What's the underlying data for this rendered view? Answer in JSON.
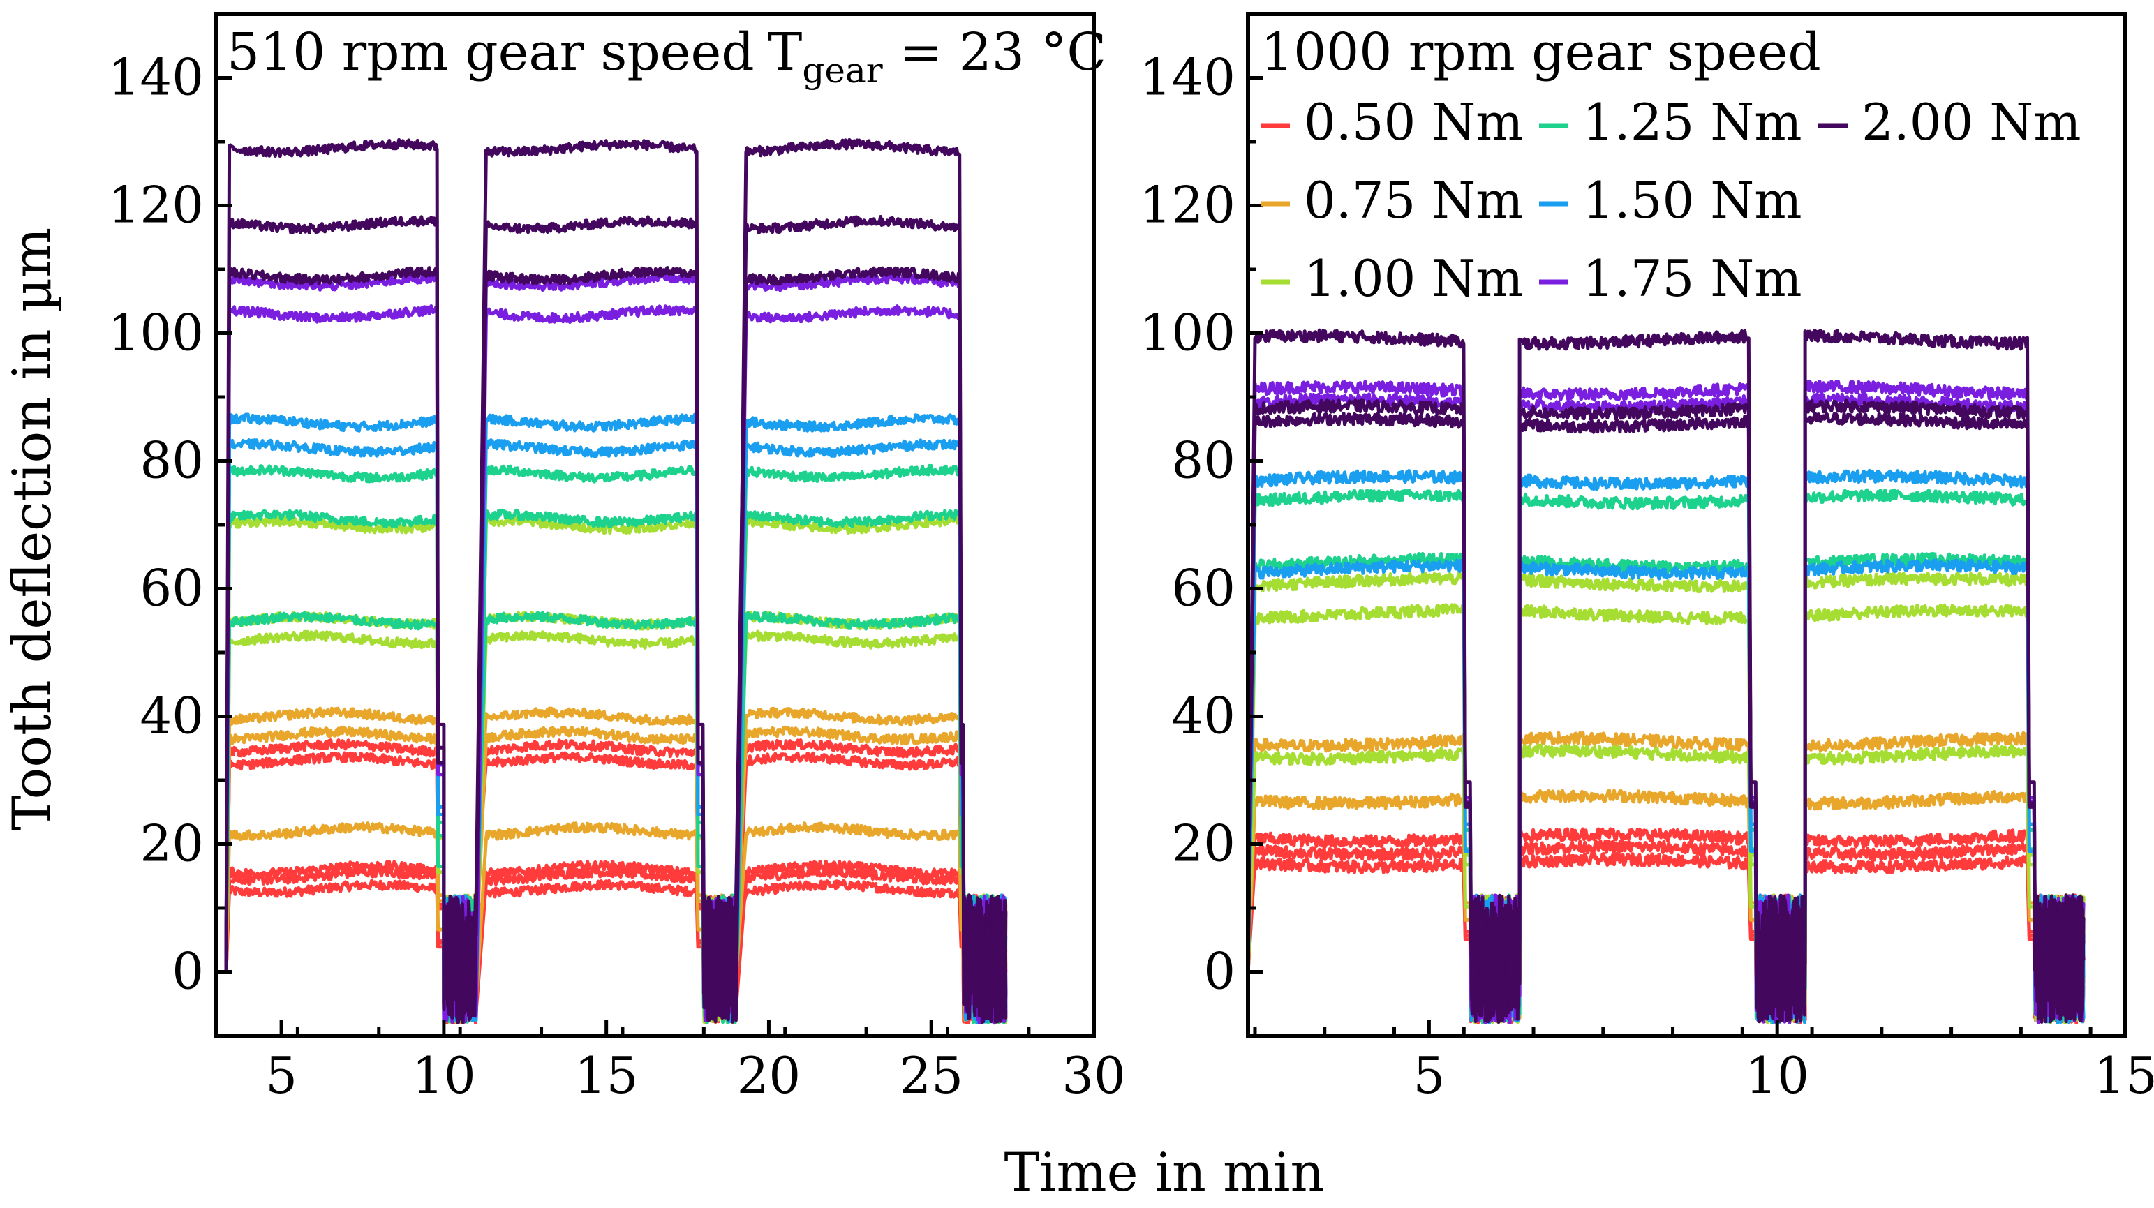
{
  "chart_data": {
    "type": "line",
    "shared": {
      "ylabel": "Tooth deflection in µm",
      "xlabel": "Time in min",
      "ylim": [
        -10,
        150
      ],
      "yticks": [
        0,
        20,
        40,
        60,
        80,
        100,
        120,
        140
      ],
      "torque_colors": {
        "0.50 Nm": "#ff3b3b",
        "0.75 Nm": "#e8a62a",
        "1.00 Nm": "#a6dd32",
        "1.25 Nm": "#1dd28c",
        "1.50 Nm": "#199ef0",
        "1.75 Nm": "#7a1fe0",
        "2.00 Nm": "#43075e"
      }
    },
    "panels": [
      {
        "id": "left",
        "title": "510 rpm gear speed",
        "annotation": {
          "prefix": "T",
          "subscript": "gear",
          "suffix": " = 23 °C"
        },
        "xlim": [
          3,
          30
        ],
        "xticks": [
          5,
          10,
          15,
          20,
          25,
          30
        ],
        "run_segments": [
          [
            3.4,
            9.8
          ],
          [
            11.3,
            17.8
          ],
          [
            19.3,
            25.9
          ]
        ],
        "idle_windows": [
          [
            10.0,
            11.0
          ],
          [
            18.0,
            19.0
          ],
          [
            26.0,
            27.3
          ]
        ],
        "series": [
          {
            "torque": "0.50 Nm",
            "levels": [
              13,
              15,
              16,
              33,
              35
            ]
          },
          {
            "torque": "0.75 Nm",
            "levels": [
              22,
              37,
              40
            ]
          },
          {
            "torque": "1.00 Nm",
            "levels": [
              52,
              55,
              70
            ]
          },
          {
            "torque": "1.25 Nm",
            "levels": [
              55,
              71,
              78
            ]
          },
          {
            "torque": "1.50 Nm",
            "levels": [
              82,
              86
            ]
          },
          {
            "torque": "1.75 Nm",
            "levels": [
              103,
              108
            ]
          },
          {
            "torque": "2.00 Nm",
            "levels": [
              109,
              117,
              129
            ]
          }
        ]
      },
      {
        "id": "right",
        "title": "1000 rpm gear speed",
        "xlim": [
          2.4,
          15
        ],
        "xticks": [
          5,
          10,
          15
        ],
        "run_segments": [
          [
            2.5,
            5.5
          ],
          [
            6.3,
            9.6
          ],
          [
            10.4,
            13.6
          ]
        ],
        "idle_windows": [
          [
            5.6,
            6.3
          ],
          [
            9.7,
            10.4
          ],
          [
            13.7,
            14.4
          ]
        ],
        "series": [
          {
            "torque": "0.50 Nm",
            "levels": [
              17,
              19,
              21
            ]
          },
          {
            "torque": "0.75 Nm",
            "levels": [
              27,
              36
            ]
          },
          {
            "torque": "1.00 Nm",
            "levels": [
              34,
              56,
              61
            ]
          },
          {
            "torque": "1.25 Nm",
            "levels": [
              64,
              74
            ]
          },
          {
            "torque": "1.50 Nm",
            "levels": [
              63,
              77
            ]
          },
          {
            "torque": "1.75 Nm",
            "levels": [
              89,
              91
            ]
          },
          {
            "torque": "2.00 Nm",
            "levels": [
              86,
              88,
              99
            ]
          }
        ],
        "legend": {
          "placement": "top-left",
          "columns": [
            [
              "0.50 Nm",
              "0.75 Nm",
              "1.00 Nm"
            ],
            [
              "1.25 Nm",
              "1.50 Nm",
              "1.75 Nm"
            ],
            [
              "2.00 Nm"
            ]
          ]
        }
      }
    ]
  }
}
